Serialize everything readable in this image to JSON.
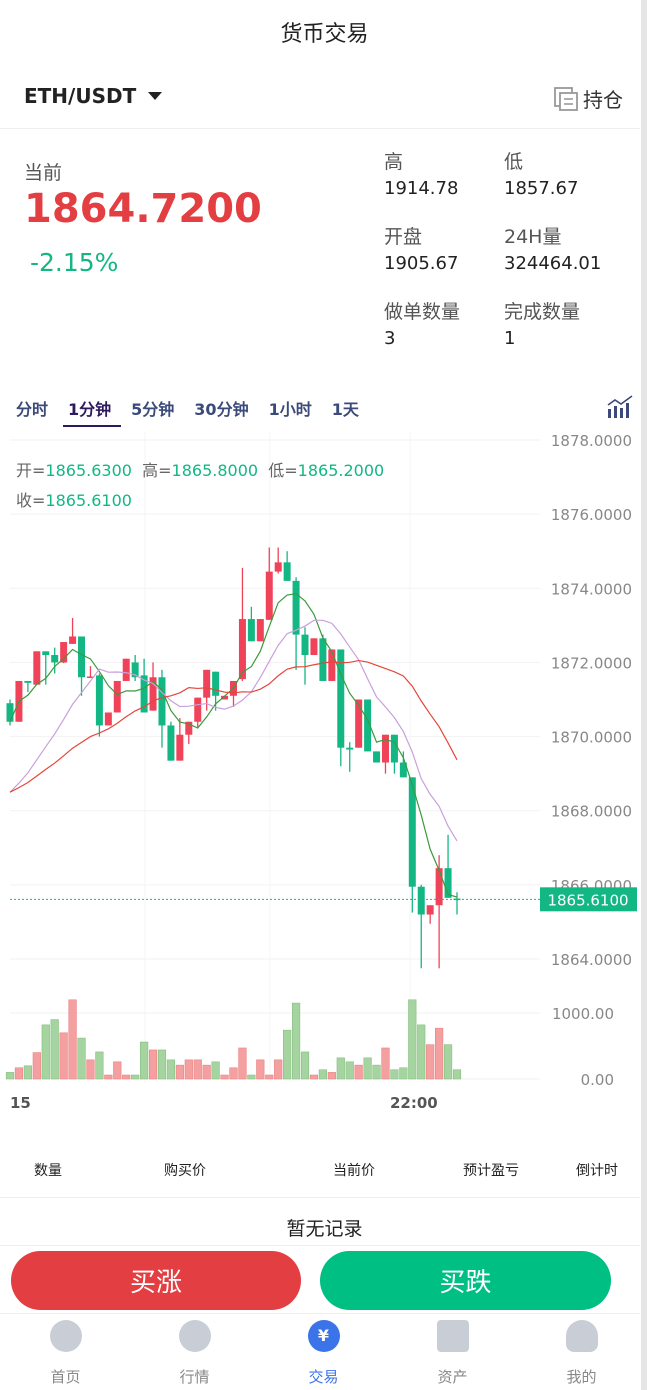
{
  "header": {
    "title": "货币交易",
    "pair": "ETH/USDT",
    "positions_label": "持仓"
  },
  "ticker": {
    "current_label": "当前",
    "price": "1864.7200",
    "change": "-2.15%",
    "high_label": "高",
    "high": "1914.78",
    "low_label": "低",
    "low": "1857.67",
    "open_label": "开盘",
    "open": "1905.67",
    "vol_label": "24H量",
    "vol": "324464.01",
    "orders_label": "做单数量",
    "orders": "3",
    "done_label": "完成数量",
    "done": "1"
  },
  "tabs": [
    "分时",
    "1分钟",
    "5分钟",
    "30分钟",
    "1小时",
    "1天"
  ],
  "ohlc": {
    "open_label": "开=",
    "open": "1865.6300",
    "high_label": "高=",
    "high": "1865.8000",
    "low_label": "低=",
    "low": "1865.2000",
    "close_label": "收=",
    "close": "1865.6100"
  },
  "colors": {
    "up": "#f0435a",
    "down": "#13b784",
    "ma5": "#3b9a3b",
    "ma10": "#c9a0dc",
    "ma30": "#e5463a",
    "vol_up": "#f5a0a0",
    "vol_down": "#a6d4a0",
    "buy": "#e33e41",
    "sell": "#00bf83",
    "accent": "#3b73e8"
  },
  "chart_data": {
    "type": "candlestick",
    "price_ticks": [
      "1878.0000",
      "1876.0000",
      "1874.0000",
      "1872.0000",
      "1870.0000",
      "1868.0000",
      "1866.0000",
      "1864.0000"
    ],
    "price_range": [
      1864,
      1878
    ],
    "last_price": "1865.6100",
    "volume_ticks": [
      "1000.00",
      "0.00"
    ],
    "volume_range": [
      0,
      1000
    ],
    "time_labels": [
      "15",
      "22:00"
    ],
    "candles": [
      [
        1870.9,
        1871,
        1870.3,
        1870.4
      ],
      [
        1870.4,
        1871.5,
        1870.4,
        1871.5
      ],
      [
        1871.5,
        1871.5,
        1871.2,
        1871.45
      ],
      [
        1871.4,
        1872.3,
        1871.4,
        1872.3
      ],
      [
        1872.3,
        1872.3,
        1871.4,
        1872.2
      ],
      [
        1872.2,
        1872.4,
        1871.7,
        1872.0
      ],
      [
        1872.0,
        1872.55,
        1871.98,
        1872.55
      ],
      [
        1872.5,
        1873.2,
        1872.5,
        1872.7
      ],
      [
        1872.7,
        1872.7,
        1871.1,
        1871.6
      ],
      [
        1871.6,
        1871.9,
        1871.6,
        1871.62
      ],
      [
        1871.65,
        1871.7,
        1870.0,
        1870.3
      ],
      [
        1870.3,
        1870.65,
        1870.3,
        1870.65
      ],
      [
        1870.65,
        1871.5,
        1870.65,
        1871.5
      ],
      [
        1871.5,
        1872.1,
        1871.5,
        1872.1
      ],
      [
        1872.0,
        1872.2,
        1871.5,
        1871.6
      ],
      [
        1871.65,
        1872.1,
        1870.65,
        1870.65
      ],
      [
        1870.7,
        1872.0,
        1870.7,
        1871.6
      ],
      [
        1871.6,
        1871.8,
        1869.7,
        1870.3
      ],
      [
        1870.3,
        1870.4,
        1869.35,
        1869.35
      ],
      [
        1869.35,
        1870.5,
        1869.35,
        1870.05
      ],
      [
        1870.05,
        1870.4,
        1869.8,
        1870.4
      ],
      [
        1870.4,
        1871.05,
        1870.25,
        1871.05
      ],
      [
        1871.05,
        1871.8,
        1870.7,
        1871.8
      ],
      [
        1871.75,
        1871.75,
        1870.7,
        1871.1
      ],
      [
        1871.0,
        1871.1,
        1871.0,
        1871.1
      ],
      [
        1871.1,
        1871.5,
        1870.8,
        1871.5
      ],
      [
        1871.55,
        1874.55,
        1871.5,
        1873.17
      ],
      [
        1873.17,
        1873.5,
        1872.57,
        1872.57
      ],
      [
        1872.57,
        1873.17,
        1872.57,
        1873.17
      ],
      [
        1873.15,
        1875.1,
        1873.15,
        1874.45
      ],
      [
        1874.45,
        1875.1,
        1874.4,
        1874.7
      ],
      [
        1874.7,
        1875.0,
        1874.2,
        1874.2
      ],
      [
        1874.2,
        1874.3,
        1871.8,
        1872.75
      ],
      [
        1872.75,
        1872.95,
        1871.4,
        1872.2
      ],
      [
        1872.2,
        1872.65,
        1872.2,
        1872.65
      ],
      [
        1872.65,
        1872.75,
        1871.5,
        1871.5
      ],
      [
        1871.5,
        1872.35,
        1871.5,
        1872.35
      ],
      [
        1872.35,
        1872.35,
        1869.2,
        1869.7
      ],
      [
        1869.7,
        1869.85,
        1869.05,
        1869.65
      ],
      [
        1869.7,
        1871.0,
        1869.7,
        1871.0
      ],
      [
        1871.0,
        1871.0,
        1869.6,
        1869.6
      ],
      [
        1869.6,
        1869.6,
        1869.3,
        1869.3
      ],
      [
        1869.3,
        1870.05,
        1869.0,
        1870.05
      ],
      [
        1870.05,
        1870.05,
        1869.0,
        1869.3
      ],
      [
        1869.3,
        1869.6,
        1868.9,
        1868.9
      ],
      [
        1868.9,
        1868.9,
        1865.25,
        1865.95
      ],
      [
        1865.95,
        1866.0,
        1863.75,
        1865.2
      ],
      [
        1865.2,
        1865.45,
        1864.95,
        1865.45
      ],
      [
        1865.45,
        1866.8,
        1863.75,
        1866.45
      ],
      [
        1866.45,
        1867.35,
        1865.65,
        1865.65
      ],
      [
        1865.63,
        1865.8,
        1865.2,
        1865.61
      ]
    ],
    "volumes": [
      100,
      170,
      200,
      400,
      820,
      900,
      700,
      1200,
      620,
      290,
      410,
      60,
      260,
      60,
      60,
      560,
      440,
      440,
      290,
      210,
      290,
      290,
      210,
      260,
      60,
      170,
      470,
      60,
      290,
      60,
      290,
      740,
      1150,
      410,
      60,
      140,
      100,
      320,
      260,
      210,
      320,
      210,
      470,
      140,
      170,
      1200,
      820,
      520,
      770,
      520,
      140
    ]
  },
  "orders": {
    "headers": [
      "数量",
      "购买价",
      "当前价",
      "预计盈亏",
      "倒计时"
    ],
    "empty": "暂无记录"
  },
  "actions": {
    "buy_up": "买涨",
    "buy_down": "买跌"
  },
  "nav": [
    {
      "label": "首页",
      "icon": "home-icon"
    },
    {
      "label": "行情",
      "icon": "market-icon"
    },
    {
      "label": "交易",
      "icon": "trade-icon",
      "active": true
    },
    {
      "label": "资产",
      "icon": "wallet-icon"
    },
    {
      "label": "我的",
      "icon": "user-icon"
    }
  ]
}
